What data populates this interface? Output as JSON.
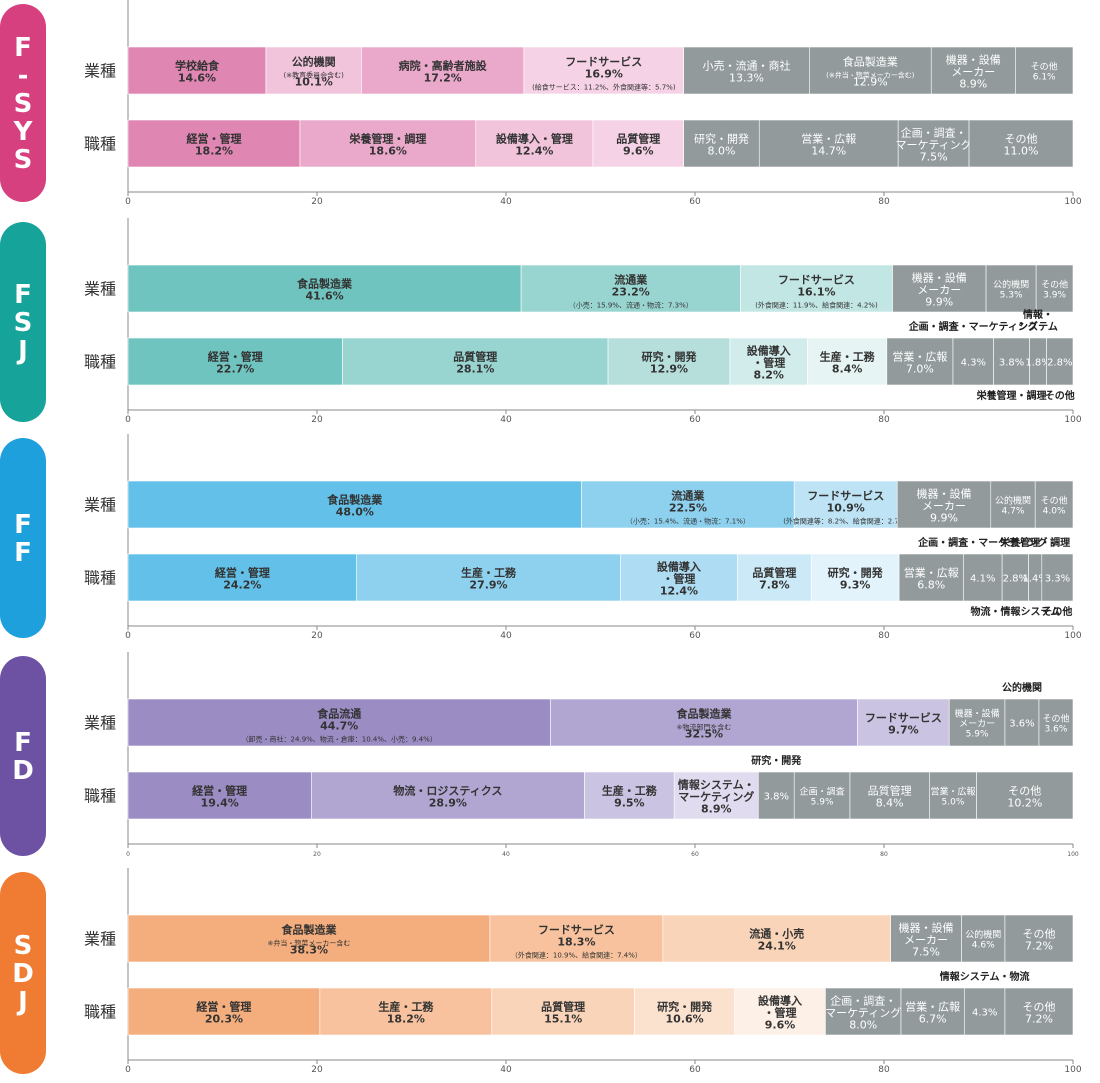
{
  "row_labels": {
    "industry": "業種",
    "job": "職種"
  },
  "chart_data": {
    "type": "bar",
    "orientation": "horizontal",
    "stacked": true,
    "percent_axis": {
      "min": 0,
      "max": 100,
      "ticks": [
        0,
        20,
        40,
        60,
        80,
        100
      ]
    },
    "panels": [
      {
        "name": "F-SYS",
        "color": "#d7407f",
        "rows": [
          {
            "label": "業種",
            "segments": [
              {
                "label": "学校給食",
                "value": 14.6,
                "value_text": "14.6%",
                "color": "#df86b2",
                "inside": true
              },
              {
                "label": "公的機関",
                "note": "(※教育委員会含む)",
                "value": 10.1,
                "value_text": "10.1%",
                "color": "#f1c4dc",
                "inside": true
              },
              {
                "label": "病院・高齢者施設",
                "value": 17.2,
                "value_text": "17.2%",
                "color": "#eaa8cb",
                "inside": true
              },
              {
                "label": "フードサービス",
                "value": 16.9,
                "value_text": "16.9%",
                "note": "(給食サービス：11.2%、外食関連等：5.7%)",
                "color": "#f5d2e5",
                "inside": true
              },
              {
                "label": "小売・流通・商社",
                "value": 13.3,
                "value_text": "13.3%",
                "color": "#929a9c",
                "inside": true
              },
              {
                "label": "食品製造業",
                "note": "(※弁当・惣菜メーカー含む)",
                "value": 12.9,
                "value_text": "12.9%",
                "color": "#929a9c",
                "inside": true
              },
              {
                "label": "機器・設備\nメーカー",
                "value": 8.9,
                "value_text": "8.9%",
                "color": "#929a9c",
                "inside": true
              },
              {
                "label": "その他",
                "value": 6.1,
                "value_text": "6.1%",
                "color": "#929a9c",
                "inside": true
              }
            ]
          },
          {
            "label": "職種",
            "segments": [
              {
                "label": "経営・管理",
                "value": 18.2,
                "value_text": "18.2%",
                "color": "#df86b2",
                "inside": true
              },
              {
                "label": "栄養管理・調理",
                "value": 18.6,
                "value_text": "18.6%",
                "color": "#eaa8cb",
                "inside": true
              },
              {
                "label": "設備導入・管理",
                "value": 12.4,
                "value_text": "12.4%",
                "color": "#f1c4dc",
                "inside": true
              },
              {
                "label": "品質管理",
                "value": 9.6,
                "value_text": "9.6%",
                "color": "#f5d2e5",
                "inside": true
              },
              {
                "label": "研究・開発",
                "value": 8.0,
                "value_text": "8.0%",
                "color": "#929a9c",
                "inside": true
              },
              {
                "label": "営業・広報",
                "value": 14.7,
                "value_text": "14.7%",
                "color": "#929a9c",
                "inside": true
              },
              {
                "label": "企画・調査・\nマーケティング",
                "value": 7.5,
                "value_text": "7.5%",
                "color": "#929a9c",
                "inside": true
              },
              {
                "label": "その他",
                "value": 11.0,
                "value_text": "11.0%",
                "color": "#929a9c",
                "inside": true
              }
            ]
          }
        ]
      },
      {
        "name": "FSJ",
        "color": "#16a49a",
        "rows": [
          {
            "label": "業種",
            "segments": [
              {
                "label": "食品製造業",
                "value": 41.6,
                "value_text": "41.6%",
                "color": "#70c4bf",
                "inside": true
              },
              {
                "label": "流通業",
                "value": 23.2,
                "value_text": "23.2%",
                "note": "（小売：15.9%、流通・物流：7.3%）",
                "color": "#98d4d0",
                "inside": true
              },
              {
                "label": "フードサービス",
                "value": 16.1,
                "value_text": "16.1%",
                "note": "(外食関連：11.9%、給食関連：4.2%)",
                "color": "#c2e6e3",
                "inside": true
              },
              {
                "label": "機器・設備\nメーカー",
                "value": 9.9,
                "value_text": "9.9%",
                "color": "#929a9c",
                "inside": true
              },
              {
                "label": "公的機関",
                "value": 5.3,
                "value_text": "5.3%",
                "color": "#929a9c",
                "inside": true
              },
              {
                "label": "その他",
                "value": 3.9,
                "value_text": "3.9%",
                "color": "#929a9c",
                "inside": true
              }
            ]
          },
          {
            "label": "職種",
            "segments": [
              {
                "label": "経営・管理",
                "value": 22.7,
                "value_text": "22.7%",
                "color": "#70c4bf",
                "inside": true
              },
              {
                "label": "品質管理",
                "value": 28.1,
                "value_text": "28.1%",
                "color": "#98d4d0",
                "inside": true
              },
              {
                "label": "研究・開発",
                "value": 12.9,
                "value_text": "12.9%",
                "color": "#b6dfdc",
                "inside": true
              },
              {
                "label": "設備導入\n・管理",
                "value": 8.2,
                "value_text": "8.2%",
                "color": "#d1ecea",
                "inside": true
              },
              {
                "label": "生産・工務",
                "value": 8.4,
                "value_text": "8.4%",
                "color": "#e6f5f3",
                "inside": true
              },
              {
                "label": "営業・広報",
                "value": 7.0,
                "value_text": "7.0%",
                "color": "#929a9c",
                "inside": true
              },
              {
                "label": "企画・調査・マーケティング",
                "value": 4.3,
                "value_text": "4.3%",
                "color": "#929a9c",
                "inside": false,
                "label_above": true
              },
              {
                "label": "栄養管理・調理",
                "value": 3.8,
                "value_text": "3.8%",
                "color": "#929a9c",
                "inside": false,
                "label_below": true
              },
              {
                "label": "情報・\nシステム",
                "value": 1.8,
                "value_text": "1.8%",
                "color": "#929a9c",
                "inside": false,
                "label_above": true
              },
              {
                "label": "その他",
                "value": 2.8,
                "value_text": "2.8%",
                "color": "#929a9c",
                "inside": false
              }
            ]
          }
        ]
      },
      {
        "name": "FF",
        "color": "#1ea0dc",
        "rows": [
          {
            "label": "業種",
            "segments": [
              {
                "label": "食品製造業",
                "value": 48.0,
                "value_text": "48.0%",
                "color": "#63c0e8",
                "inside": true
              },
              {
                "label": "流通業",
                "value": 22.5,
                "value_text": "22.5%",
                "note": "（小売：15.4%、流通・物流：7.1%）",
                "color": "#8ed1ef",
                "inside": true
              },
              {
                "label": "フードサービス",
                "value": 10.9,
                "value_text": "10.9%",
                "note": "(外食関連等：8.2%、給食関連：2.7%)",
                "color": "#bde3f5",
                "inside": true
              },
              {
                "label": "機器・設備\nメーカー",
                "value": 9.9,
                "value_text": "9.9%",
                "color": "#929a9c",
                "inside": true
              },
              {
                "label": "公的機関",
                "value": 4.7,
                "value_text": "4.7%",
                "color": "#929a9c",
                "inside": true
              },
              {
                "label": "その他",
                "value": 4.0,
                "value_text": "4.0%",
                "color": "#929a9c",
                "inside": true
              }
            ]
          },
          {
            "label": "職種",
            "segments": [
              {
                "label": "経営・管理",
                "value": 24.2,
                "value_text": "24.2%",
                "color": "#63c0e8",
                "inside": true
              },
              {
                "label": "生産・工務",
                "value": 27.9,
                "value_text": "27.9%",
                "color": "#8ed1ef",
                "inside": true
              },
              {
                "label": "設備導入\n・管理",
                "value": 12.4,
                "value_text": "12.4%",
                "color": "#aedcf2",
                "inside": true
              },
              {
                "label": "品質管理",
                "value": 7.8,
                "value_text": "7.8%",
                "color": "#cce9f7",
                "inside": true
              },
              {
                "label": "研究・開発",
                "value": 9.3,
                "value_text": "9.3%",
                "color": "#e2f3fb",
                "inside": true
              },
              {
                "label": "営業・広報",
                "value": 6.8,
                "value_text": "6.8%",
                "color": "#929a9c",
                "inside": true
              },
              {
                "label": "企画・調査・マーケティング",
                "value": 4.1,
                "value_text": "4.1%",
                "color": "#929a9c",
                "inside": false,
                "label_above": true
              },
              {
                "label": "物流・情報システム",
                "value": 2.8,
                "value_text": "2.8%",
                "color": "#929a9c",
                "inside": false,
                "label_below": true
              },
              {
                "label": "栄養管理・調理",
                "value": 1.4,
                "value_text": "1.4%",
                "color": "#929a9c",
                "inside": false,
                "label_above": true
              },
              {
                "label": "その他",
                "value": 3.3,
                "value_text": "3.3%",
                "color": "#929a9c",
                "inside": false
              }
            ]
          }
        ]
      },
      {
        "name": "FD",
        "color": "#6d52a3",
        "rows": [
          {
            "label": "業種",
            "segments": [
              {
                "label": "食品流通",
                "value": 44.7,
                "value_text": "44.7%",
                "note": "（卸売・商社：24.9%、物流・倉庫：10.4%、小売：9.4%）",
                "color": "#9b8cc4",
                "inside": true
              },
              {
                "label": "食品製造業",
                "note": "※物流部門を含む",
                "value": 32.5,
                "value_text": "32.5%",
                "color": "#b1a6d2",
                "inside": true
              },
              {
                "label": "フードサービス",
                "value": 9.7,
                "value_text": "9.7%",
                "color": "#cbc3e2",
                "inside": true
              },
              {
                "label": "機器・設備\nメーカー",
                "value": 5.9,
                "value_text": "5.9%",
                "color": "#929a9c",
                "inside": true
              },
              {
                "label": "公的機関",
                "value": 3.6,
                "value_text": "3.6%",
                "color": "#929a9c",
                "inside": false,
                "label_above": true
              },
              {
                "label": "その他",
                "value": 3.6,
                "value_text": "3.6%",
                "color": "#929a9c",
                "inside": true
              }
            ]
          },
          {
            "label": "職種",
            "segments": [
              {
                "label": "経営・管理",
                "value": 19.4,
                "value_text": "19.4%",
                "color": "#9b8cc4",
                "inside": true
              },
              {
                "label": "物流・ロジスティクス",
                "value": 28.9,
                "value_text": "28.9%",
                "color": "#b1a6d2",
                "inside": true
              },
              {
                "label": "生産・工務",
                "value": 9.5,
                "value_text": "9.5%",
                "color": "#cbc3e2",
                "inside": true
              },
              {
                "label": "情報システム・\nマーケティング",
                "value": 8.9,
                "value_text": "8.9%",
                "color": "#e0dbef",
                "inside": true
              },
              {
                "label": "研究・開発",
                "value": 3.8,
                "value_text": "3.8%",
                "color": "#929a9c",
                "inside": false,
                "label_above": true
              },
              {
                "label": "企画・調査",
                "value": 5.9,
                "value_text": "5.9%",
                "color": "#929a9c",
                "inside": true
              },
              {
                "label": "品質管理",
                "value": 8.4,
                "value_text": "8.4%",
                "color": "#929a9c",
                "inside": true
              },
              {
                "label": "営業・広報",
                "value": 5.0,
                "value_text": "5.0%",
                "color": "#929a9c",
                "inside": true
              },
              {
                "label": "その他",
                "value": 10.2,
                "value_text": "10.2%",
                "color": "#929a9c",
                "inside": true
              }
            ]
          }
        ]
      },
      {
        "name": "SDJ",
        "color": "#f07b32",
        "rows": [
          {
            "label": "業種",
            "segments": [
              {
                "label": "食品製造業",
                "note": "※弁当・惣菜メーカー含む",
                "value": 38.3,
                "value_text": "38.3%",
                "color": "#f4ae7e",
                "inside": true
              },
              {
                "label": "フードサービス",
                "value": 18.3,
                "value_text": "18.3%",
                "note": "（外食関連：10.9%、給食関連：7.4%）",
                "color": "#f7c29d",
                "inside": true
              },
              {
                "label": "流通・小売",
                "value": 24.1,
                "value_text": "24.1%",
                "color": "#fad4b8",
                "inside": true
              },
              {
                "label": "機器・設備\nメーカー",
                "value": 7.5,
                "value_text": "7.5%",
                "color": "#929a9c",
                "inside": true
              },
              {
                "label": "公的機関",
                "value": 4.6,
                "value_text": "4.6%",
                "color": "#929a9c",
                "inside": true
              },
              {
                "label": "その他",
                "value": 7.2,
                "value_text": "7.2%",
                "color": "#929a9c",
                "inside": true
              }
            ]
          },
          {
            "label": "職種",
            "segments": [
              {
                "label": "経営・管理",
                "value": 20.3,
                "value_text": "20.3%",
                "color": "#f4ae7e",
                "inside": true
              },
              {
                "label": "生産・工務",
                "value": 18.2,
                "value_text": "18.2%",
                "color": "#f7c29d",
                "inside": true
              },
              {
                "label": "品質管理",
                "value": 15.1,
                "value_text": "15.1%",
                "color": "#fad4b8",
                "inside": true
              },
              {
                "label": "研究・開発",
                "value": 10.6,
                "value_text": "10.6%",
                "color": "#fbe2cf",
                "inside": true
              },
              {
                "label": "設備導入\n・管理",
                "value": 9.6,
                "value_text": "9.6%",
                "color": "#fdf0e6",
                "inside": true
              },
              {
                "label": "企画・調査・\nマーケティング",
                "value": 8.0,
                "value_text": "8.0%",
                "color": "#929a9c",
                "inside": true
              },
              {
                "label": "営業・広報",
                "value": 6.7,
                "value_text": "6.7%",
                "color": "#929a9c",
                "inside": true
              },
              {
                "label": "情報システム・物流",
                "value": 4.3,
                "value_text": "4.3%",
                "color": "#929a9c",
                "inside": false,
                "label_above": true
              },
              {
                "label": "その他",
                "value": 7.2,
                "value_text": "7.2%",
                "color": "#929a9c",
                "inside": true
              }
            ]
          }
        ]
      }
    ]
  }
}
